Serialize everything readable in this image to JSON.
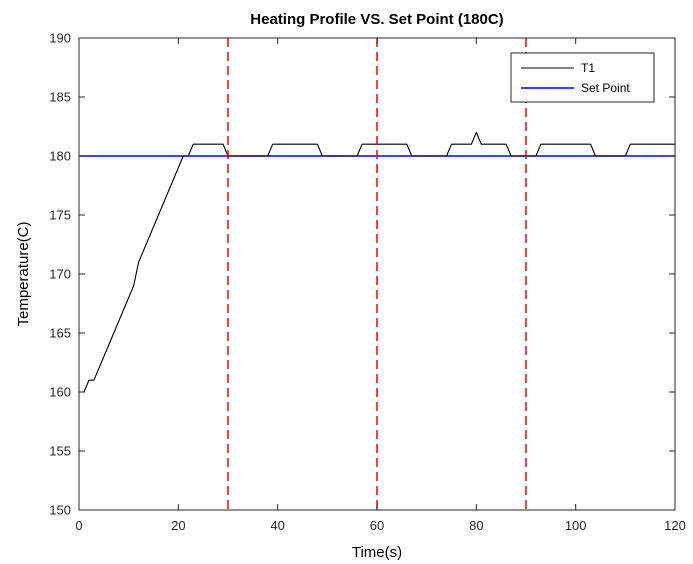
{
  "chart_data": {
    "type": "line",
    "title": "Heating Profile VS. Set Point (180C)",
    "xlabel": "Time(s)",
    "ylabel": "Temperature(C)",
    "xlim": [
      0,
      120
    ],
    "ylim": [
      150,
      190
    ],
    "xticks": [
      0,
      20,
      40,
      60,
      80,
      100,
      120
    ],
    "yticks": [
      150,
      155,
      160,
      165,
      170,
      175,
      180,
      185,
      190
    ],
    "xtick_labels": [
      "0",
      "20",
      "40",
      "60",
      "80",
      "100",
      "120"
    ],
    "ytick_labels": [
      "150",
      "155",
      "160",
      "165",
      "170",
      "175",
      "180",
      "185",
      "190"
    ],
    "grid": false,
    "legend_position": "top-right",
    "series": [
      {
        "name": "T1",
        "color": "#000000",
        "x": [
          0,
          1,
          2,
          3,
          5,
          7,
          9,
          11,
          12,
          14,
          16,
          18,
          20,
          21,
          22,
          23,
          24,
          26,
          28,
          29,
          30,
          37.5,
          38,
          39,
          47,
          48,
          49,
          55.5,
          56,
          57,
          65,
          66,
          67,
          73,
          74,
          75,
          79,
          80,
          81,
          85,
          86,
          87,
          91,
          92,
          93,
          102,
          103,
          104,
          109,
          110,
          111,
          120
        ],
        "y": [
          160,
          160,
          161,
          161,
          163,
          165,
          167,
          169,
          171,
          173,
          175,
          177,
          179,
          180,
          180,
          181,
          181,
          181,
          181,
          181,
          180,
          180,
          180,
          181,
          181,
          181,
          180,
          180,
          180,
          181,
          181,
          181,
          180,
          180,
          180,
          181,
          181,
          182,
          181,
          181,
          181,
          180,
          180,
          180,
          181,
          181,
          181,
          180,
          180,
          180,
          181,
          181
        ]
      },
      {
        "name": "Set Point",
        "color": "#0000ff",
        "x": [
          0,
          120
        ],
        "y": [
          180,
          180
        ]
      }
    ],
    "vlines": [
      {
        "x": 30,
        "color": "#ff0000",
        "style": "dashed"
      },
      {
        "x": 60,
        "color": "#ff0000",
        "style": "dashed"
      },
      {
        "x": 90,
        "color": "#ff0000",
        "style": "dashed"
      }
    ]
  }
}
